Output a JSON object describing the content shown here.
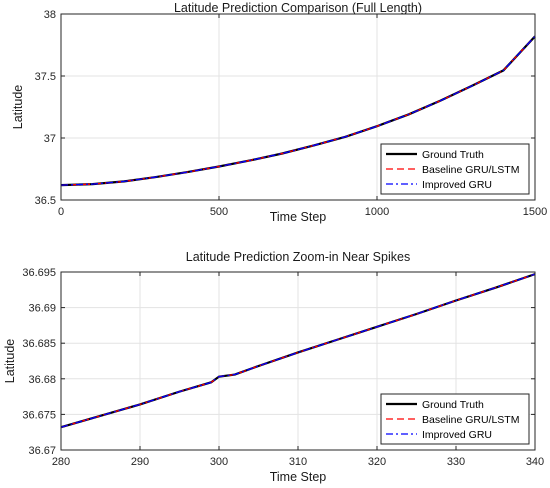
{
  "chart_data": [
    {
      "type": "line",
      "title": "Latitude Prediction Comparison (Full Length)",
      "xlabel": "Time Step",
      "ylabel": "Latitude",
      "xlim": [
        0,
        1500
      ],
      "ylim": [
        36.5,
        38
      ],
      "xticks": [
        0,
        500,
        1000,
        1500
      ],
      "yticks": [
        36.5,
        37,
        37.5,
        38
      ],
      "xtick_labels": [
        "0",
        "500",
        "1000",
        "1500"
      ],
      "ytick_labels": [
        "36.5",
        "37",
        "37.5",
        "38"
      ],
      "grid": true,
      "legend_position": "lower-right",
      "series": [
        {
          "name": "Ground Truth",
          "color": "#000000",
          "style": "solid",
          "x": [
            0,
            100,
            200,
            300,
            400,
            500,
            600,
            700,
            800,
            900,
            1000,
            1100,
            1200,
            1300,
            1400,
            1500
          ],
          "y": [
            36.62,
            36.628,
            36.65,
            36.685,
            36.725,
            36.77,
            36.82,
            36.875,
            36.94,
            37.01,
            37.095,
            37.19,
            37.3,
            37.42,
            37.545,
            37.82
          ]
        },
        {
          "name": "Baseline GRU/LSTM",
          "color": "#ff0000",
          "style": "dashed",
          "x": [
            0,
            100,
            200,
            300,
            400,
            500,
            600,
            700,
            800,
            900,
            1000,
            1100,
            1200,
            1300,
            1400,
            1500
          ],
          "y": [
            36.62,
            36.628,
            36.65,
            36.685,
            36.725,
            36.77,
            36.82,
            36.875,
            36.94,
            37.01,
            37.095,
            37.19,
            37.3,
            37.42,
            37.545,
            37.82
          ]
        },
        {
          "name": "Improved GRU",
          "color": "#0000ff",
          "style": "dashdot",
          "x": [
            0,
            100,
            200,
            300,
            400,
            500,
            600,
            700,
            800,
            900,
            1000,
            1100,
            1200,
            1300,
            1400,
            1500
          ],
          "y": [
            36.62,
            36.628,
            36.65,
            36.685,
            36.725,
            36.77,
            36.82,
            36.875,
            36.94,
            37.01,
            37.095,
            37.19,
            37.3,
            37.42,
            37.545,
            37.82
          ]
        }
      ]
    },
    {
      "type": "line",
      "title": "Latitude Prediction Zoom-in Near Spikes",
      "xlabel": "Time Step",
      "ylabel": "Latitude",
      "xlim": [
        280,
        340
      ],
      "ylim": [
        36.67,
        36.695
      ],
      "xticks": [
        280,
        290,
        300,
        310,
        320,
        330,
        340
      ],
      "yticks": [
        36.67,
        36.675,
        36.68,
        36.685,
        36.69,
        36.695
      ],
      "xtick_labels": [
        "280",
        "290",
        "300",
        "310",
        "320",
        "330",
        "340"
      ],
      "ytick_labels": [
        "36.67",
        "36.675",
        "36.68",
        "36.685",
        "36.69",
        "36.695"
      ],
      "grid": true,
      "legend_position": "lower-right",
      "series": [
        {
          "name": "Ground Truth",
          "color": "#000000",
          "style": "solid",
          "x": [
            280,
            285,
            290,
            295,
            299,
            300,
            302,
            305,
            310,
            315,
            320,
            325,
            330,
            335,
            340
          ],
          "y": [
            36.6732,
            36.6748,
            36.6764,
            36.6782,
            36.6795,
            36.6803,
            36.6806,
            36.6818,
            36.6837,
            36.6855,
            36.6873,
            36.6891,
            36.691,
            36.6928,
            36.6947
          ]
        },
        {
          "name": "Baseline GRU/LSTM",
          "color": "#ff0000",
          "style": "dashed",
          "x": [
            280,
            285,
            290,
            295,
            299,
            300,
            302,
            305,
            310,
            315,
            320,
            325,
            330,
            335,
            340
          ],
          "y": [
            36.6732,
            36.6748,
            36.6764,
            36.6782,
            36.6795,
            36.6803,
            36.6806,
            36.6818,
            36.6837,
            36.6855,
            36.6873,
            36.6891,
            36.691,
            36.6928,
            36.6947
          ]
        },
        {
          "name": "Improved GRU",
          "color": "#0000ff",
          "style": "dashdot",
          "x": [
            280,
            285,
            290,
            295,
            299,
            300,
            302,
            305,
            310,
            315,
            320,
            325,
            330,
            335,
            340
          ],
          "y": [
            36.6732,
            36.6748,
            36.6764,
            36.6782,
            36.6795,
            36.6803,
            36.6806,
            36.6818,
            36.6837,
            36.6855,
            36.6873,
            36.6891,
            36.691,
            36.6928,
            36.6947
          ]
        }
      ]
    }
  ]
}
